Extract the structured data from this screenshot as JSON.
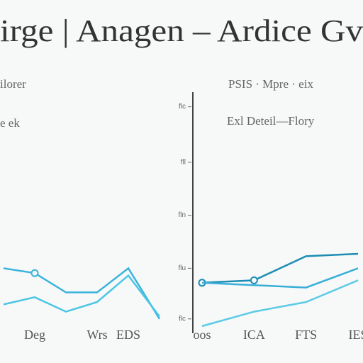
{
  "header": {
    "title": "irge | Anagen – Ardice Gv"
  },
  "chart_data": [
    {
      "type": "line",
      "title": "ilorer",
      "subtitle": "e ek",
      "categories": [
        null,
        "Deg",
        null,
        "Wrs",
        "EDS",
        null
      ],
      "ylim": [
        0,
        100
      ],
      "series": [
        {
          "color": "#3bb4dc",
          "values": [
            24,
            22,
            14,
            14,
            24,
            3
          ]
        },
        {
          "color": "#4cc6e4",
          "values": [
            9,
            12,
            6,
            10,
            21,
            4
          ]
        }
      ]
    },
    {
      "type": "line",
      "title": "PSIS · Mpre · eix",
      "subtitle": "Exl Deteil—Flory",
      "categories": [
        "oos",
        "ICA",
        "FTS",
        "IES"
      ],
      "ylim": [
        0,
        100
      ],
      "yticks": [
        {
          "value": 91,
          "label": "flc"
        },
        {
          "value": 68,
          "label": "fll"
        },
        {
          "value": 46,
          "label": "fln"
        },
        {
          "value": 24,
          "label": "flu"
        },
        {
          "value": 3,
          "label": "flc"
        }
      ],
      "series": [
        {
          "color": "#1b8db3",
          "values": [
            18,
            19,
            29,
            30
          ]
        },
        {
          "color": "#5ccbe6",
          "values": [
            0,
            6,
            10,
            19
          ]
        },
        {
          "color": "#38afd8",
          "values": [
            18,
            17,
            16,
            24
          ]
        }
      ]
    }
  ]
}
